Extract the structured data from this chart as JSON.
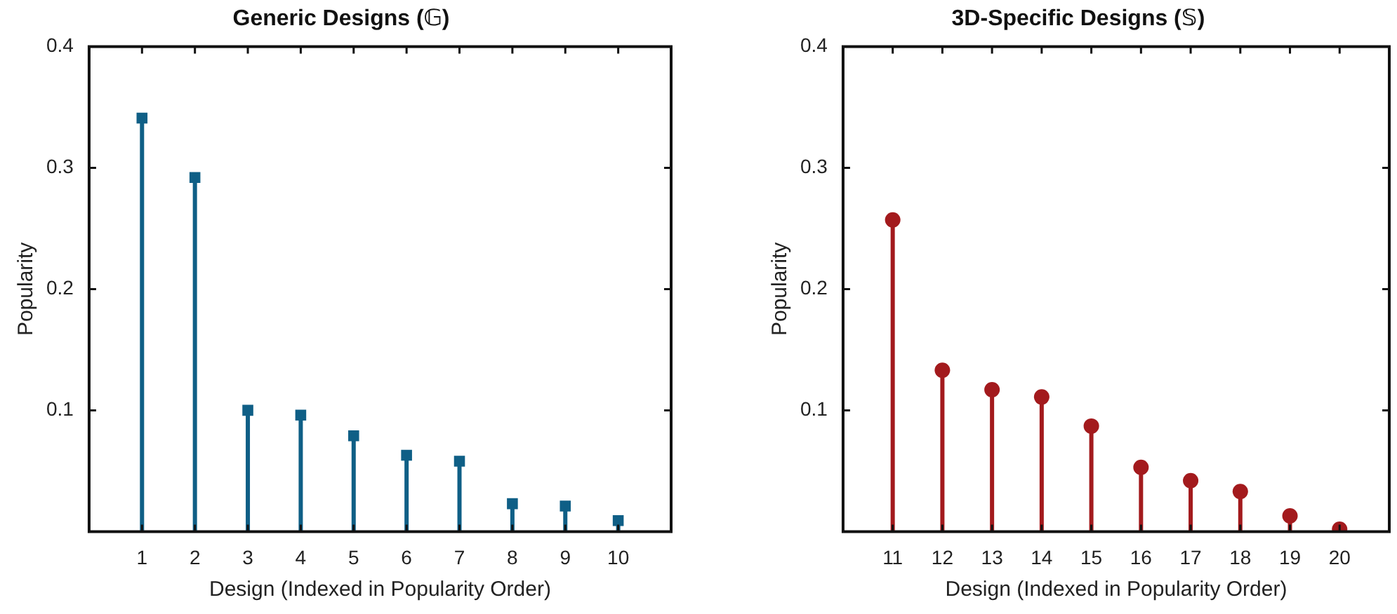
{
  "chart_data": [
    {
      "type": "lollipop",
      "title": "Generic Designs (𝔾)",
      "xlabel": "Design (Indexed in Popularity Order)",
      "ylabel": "Popularity",
      "x": [
        1,
        2,
        3,
        4,
        5,
        6,
        7,
        8,
        9,
        10
      ],
      "values": [
        0.341,
        0.292,
        0.1,
        0.096,
        0.079,
        0.063,
        0.058,
        0.023,
        0.021,
        0.009
      ],
      "color": "#0f5f86",
      "marker": "square",
      "xlim": [
        0,
        11
      ],
      "xticks": [
        1,
        2,
        3,
        4,
        5,
        6,
        7,
        8,
        9,
        10
      ],
      "ylim": [
        0,
        0.4
      ],
      "yticks": [
        0.1,
        0.2,
        0.3,
        0.4
      ]
    },
    {
      "type": "lollipop",
      "title": "3D-Specific Designs (𝕊)",
      "xlabel": "Design (Indexed in Popularity Order)",
      "ylabel": "Popularity",
      "x": [
        11,
        12,
        13,
        14,
        15,
        16,
        17,
        18,
        19,
        20
      ],
      "values": [
        0.257,
        0.133,
        0.117,
        0.111,
        0.087,
        0.053,
        0.042,
        0.033,
        0.013,
        0.002
      ],
      "color": "#a31a1d",
      "marker": "circle",
      "xlim": [
        10,
        21
      ],
      "xticks": [
        11,
        12,
        13,
        14,
        15,
        16,
        17,
        18,
        19,
        20
      ],
      "ylim": [
        0,
        0.4
      ],
      "yticks": [
        0.1,
        0.2,
        0.3,
        0.4
      ]
    }
  ]
}
